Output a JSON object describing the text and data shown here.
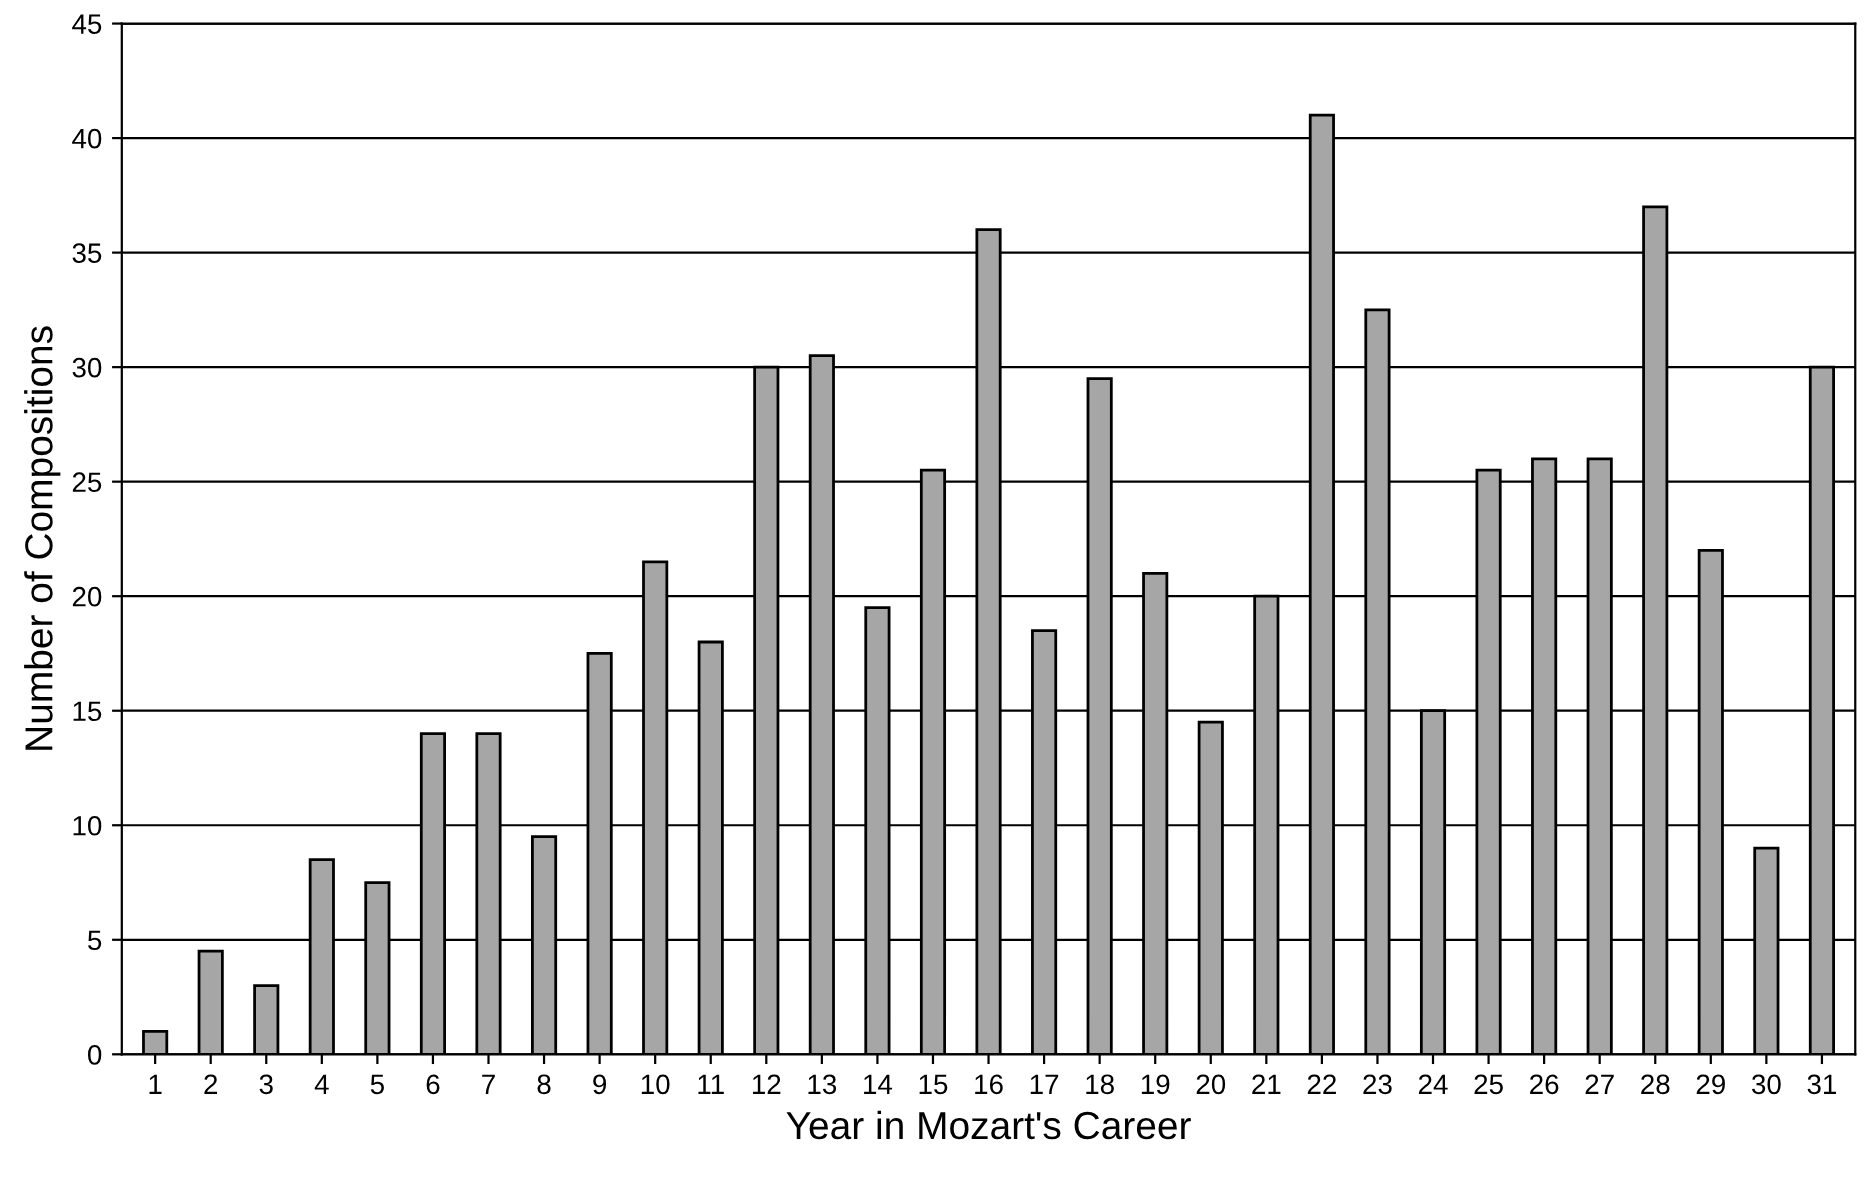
{
  "chart_data": {
    "type": "bar",
    "xlabel": "Year in Mozart's Career",
    "ylabel": "Number of Compositions",
    "categories": [
      "1",
      "2",
      "3",
      "4",
      "5",
      "6",
      "7",
      "8",
      "9",
      "10",
      "11",
      "12",
      "13",
      "14",
      "15",
      "16",
      "17",
      "18",
      "19",
      "20",
      "21",
      "22",
      "23",
      "24",
      "25",
      "26",
      "27",
      "28",
      "29",
      "30",
      "31"
    ],
    "values": [
      1,
      4.5,
      3,
      8.5,
      7.5,
      14,
      14,
      9.5,
      17.5,
      21.5,
      18,
      30,
      30.5,
      19.5,
      25.5,
      36,
      18.5,
      29.5,
      21,
      14.5,
      20,
      41,
      32.5,
      15,
      25.5,
      26,
      26,
      37,
      22,
      9,
      30
    ],
    "color": "#a6a6a6",
    "ylim": [
      0,
      45
    ],
    "yticks": [
      0,
      5,
      10,
      15,
      20,
      25,
      30,
      35,
      40,
      45
    ],
    "grid": "y"
  }
}
